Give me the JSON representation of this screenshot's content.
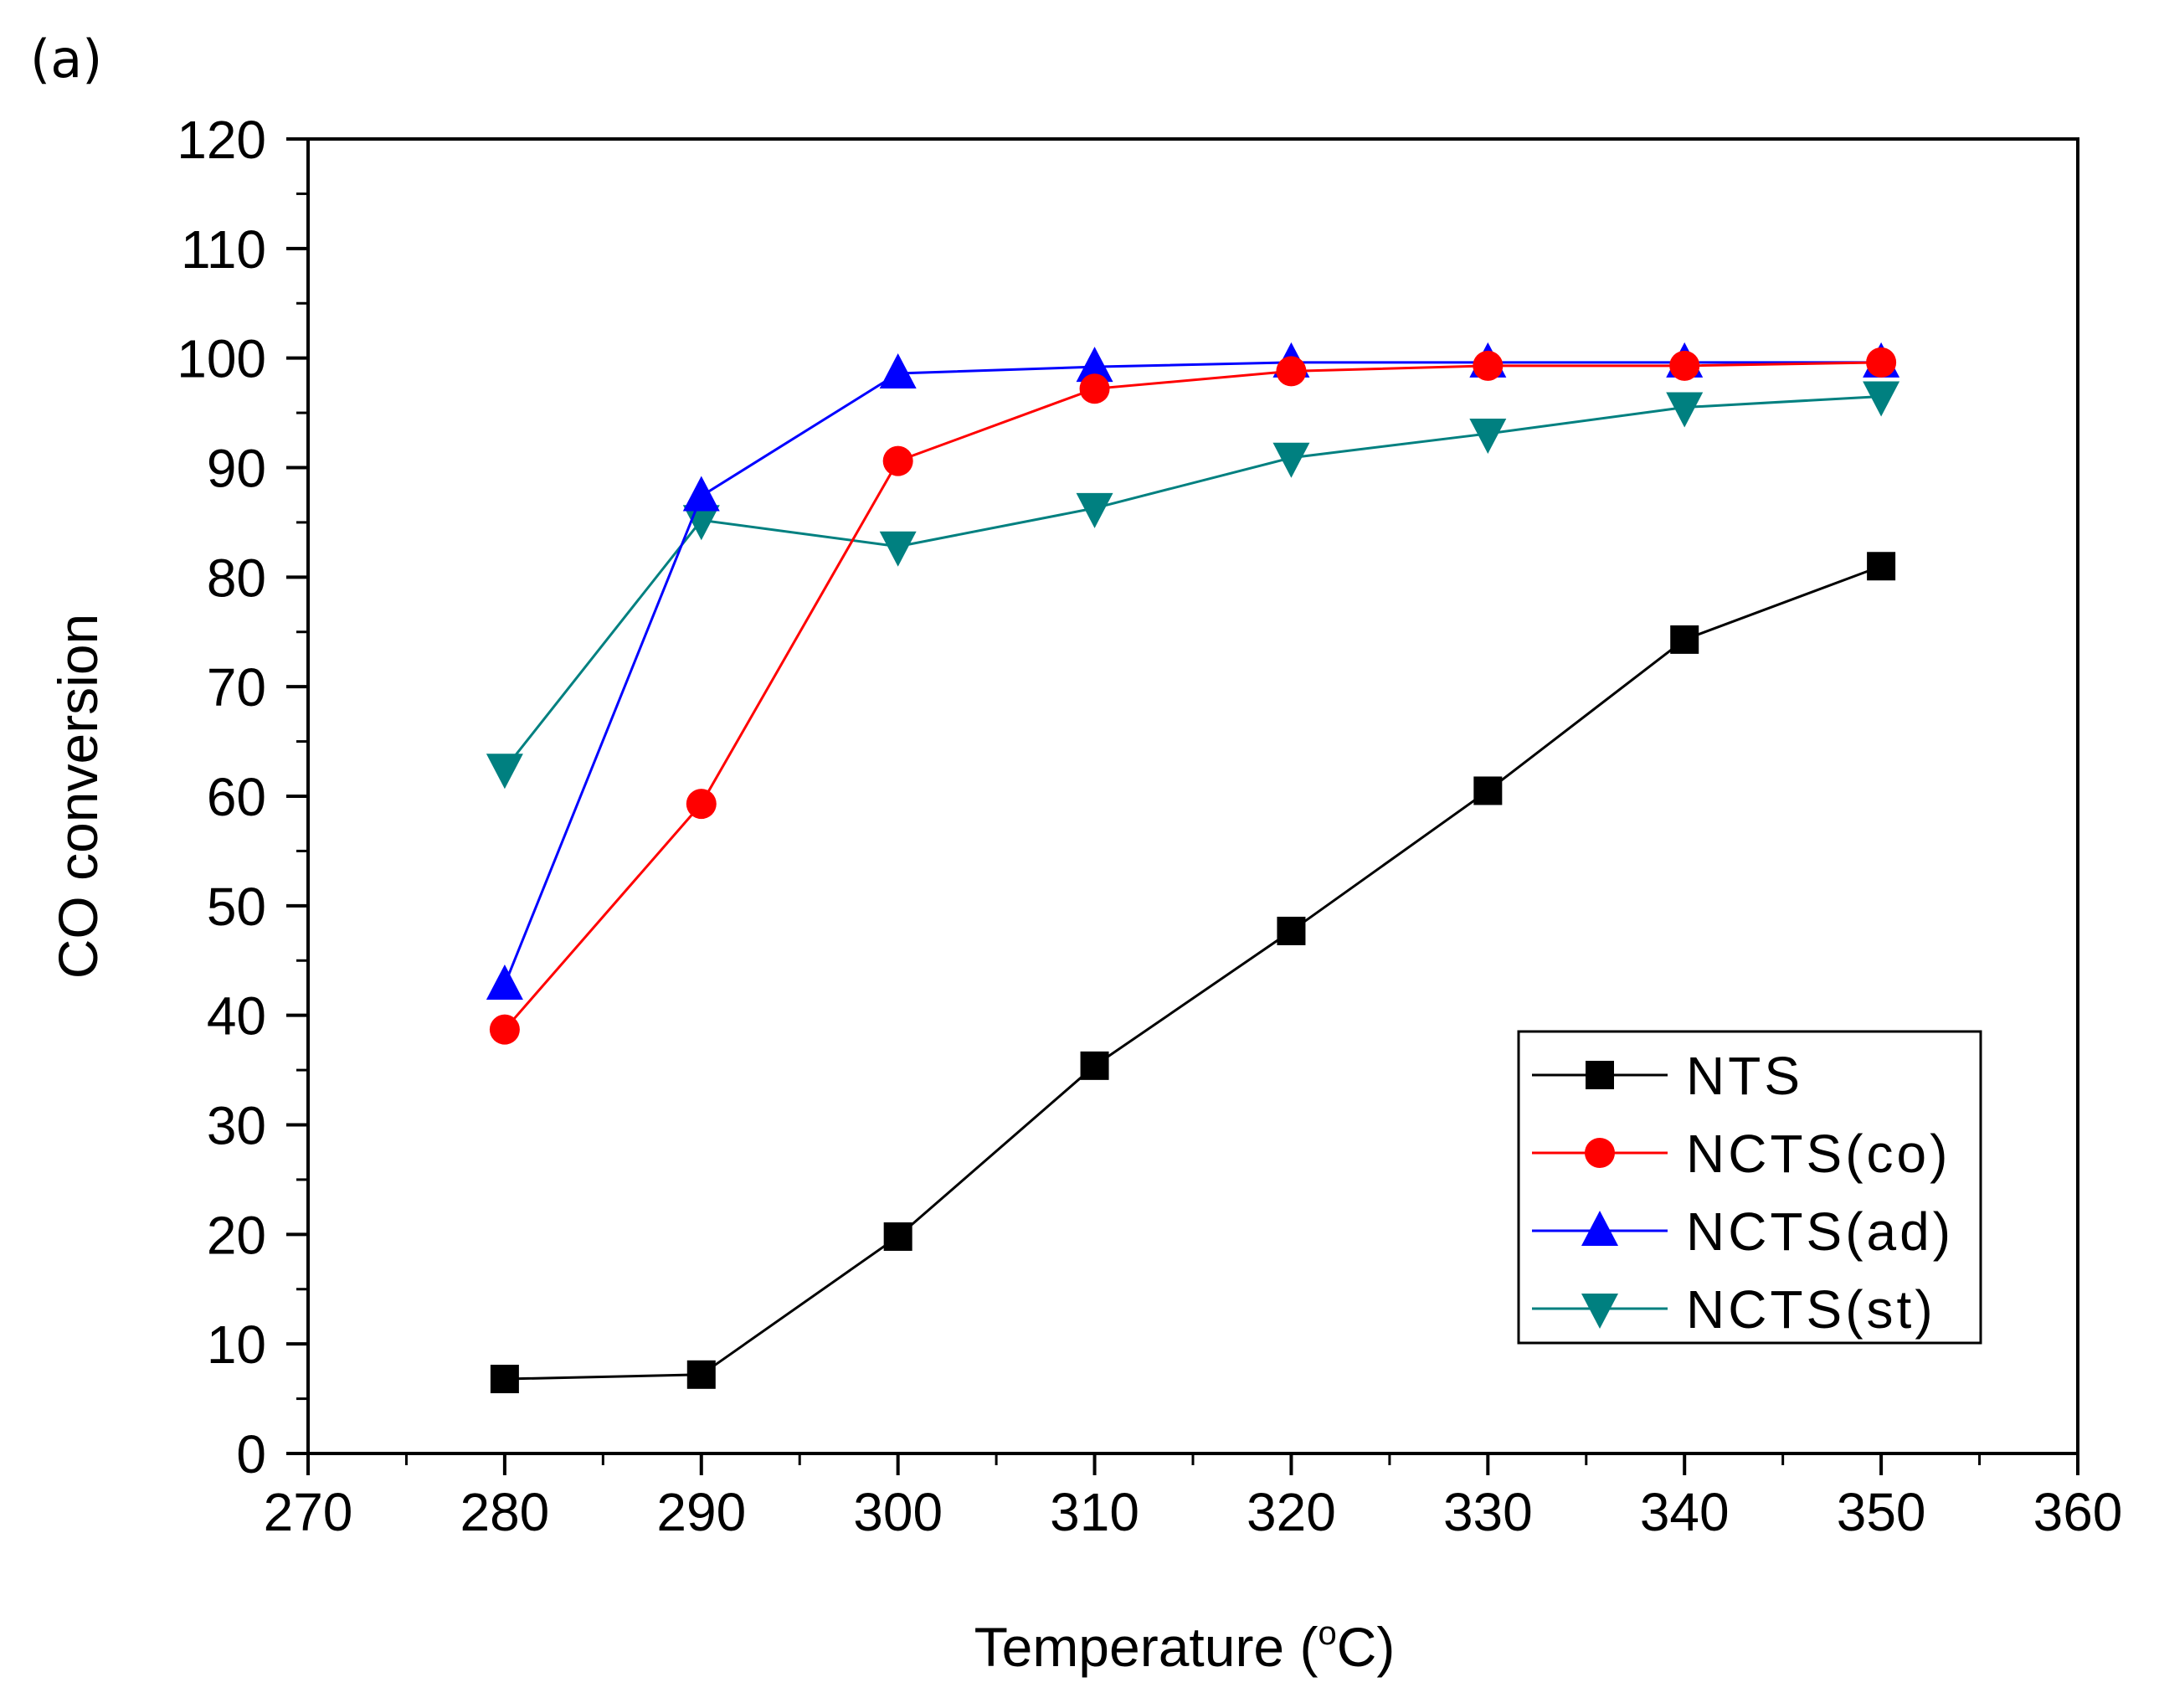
{
  "chart_data": {
    "type": "line",
    "panel_label": "(a)",
    "xlabel": "Temperature (",
    "xlabel_unit_super": "o",
    "xlabel_unit_tail": "C)",
    "ylabel": "CO conversion",
    "xlim": [
      270,
      360
    ],
    "ylim": [
      0,
      120
    ],
    "xticks": [
      270,
      280,
      290,
      300,
      310,
      320,
      330,
      340,
      350,
      360
    ],
    "yticks": [
      0,
      10,
      20,
      30,
      40,
      50,
      60,
      70,
      80,
      90,
      100,
      110,
      120
    ],
    "x": [
      280,
      290,
      300,
      310,
      320,
      330,
      340,
      350
    ],
    "legend_position": "bottom-right",
    "series": [
      {
        "name": "NTS",
        "color": "#000000",
        "marker": "square",
        "values": [
          6.8,
          7.2,
          19.8,
          35.4,
          47.7,
          60.5,
          74.3,
          81.0
        ]
      },
      {
        "name": "NCTS(co)",
        "color": "#ff0000",
        "marker": "circle",
        "values": [
          38.7,
          59.3,
          90.6,
          97.2,
          98.8,
          99.3,
          99.3,
          99.6
        ]
      },
      {
        "name": "NCTS(ad)",
        "color": "#0000ff",
        "marker": "triangle-up",
        "values": [
          42.8,
          87.4,
          98.6,
          99.2,
          99.6,
          99.6,
          99.6,
          99.6
        ]
      },
      {
        "name": "NCTS(st)",
        "color": "#008080",
        "marker": "triangle-down",
        "values": [
          62.5,
          85.2,
          82.8,
          86.3,
          90.9,
          93.1,
          95.5,
          96.5
        ]
      }
    ]
  }
}
